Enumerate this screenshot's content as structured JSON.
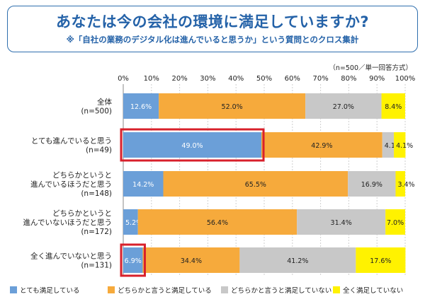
{
  "header": {
    "title": "あなたは今の会社の環境に満足していますか?",
    "subtitle": "※「自社の業務のデジタル化は進んでいると思うか」という質問とのクロス集計",
    "note": "（n=500／単一回答方式）"
  },
  "chart_data": {
    "type": "stacked-bar-horizontal",
    "x_ticks": [
      "0%",
      "10%",
      "20%",
      "30%",
      "40%",
      "50%",
      "60%",
      "70%",
      "80%",
      "90%",
      "100%"
    ],
    "xlim": [
      0,
      100
    ],
    "grid": true,
    "legend_position": "bottom",
    "categories": [
      {
        "label": "全体",
        "n": "(n=500)"
      },
      {
        "label": "とても進んでいると思う",
        "n": "(n=49)"
      },
      {
        "label": "どちらかというと\n進んでいるほうだと思う",
        "n": "(n=148)"
      },
      {
        "label": "どちらかというと\n進んでいないほうだと思う",
        "n": "(n=172)"
      },
      {
        "label": "全く進んでいないと思う",
        "n": "(n=131)"
      }
    ],
    "series": [
      {
        "name": "とても満足している",
        "color": "#6b9fd8",
        "values": [
          12.6,
          49.0,
          14.2,
          5.2,
          6.9
        ]
      },
      {
        "name": "どちらかと言うと満足している",
        "color": "#f6aa3c",
        "values": [
          52.0,
          42.9,
          65.5,
          56.4,
          34.4
        ]
      },
      {
        "name": "どちらかと言うと満足していない",
        "color": "#c8c8c8",
        "values": [
          27.0,
          4.1,
          16.9,
          31.4,
          41.2
        ]
      },
      {
        "name": "全く満足していない",
        "color": "#fff200",
        "values": [
          8.4,
          4.1,
          3.4,
          7.0,
          17.6
        ]
      }
    ],
    "label_colors": [
      "#ffffff",
      "#222222",
      "#222222",
      "#222222"
    ],
    "highlight": {
      "series": 0,
      "categories": [
        1,
        4
      ],
      "color": "#d8202b"
    }
  }
}
